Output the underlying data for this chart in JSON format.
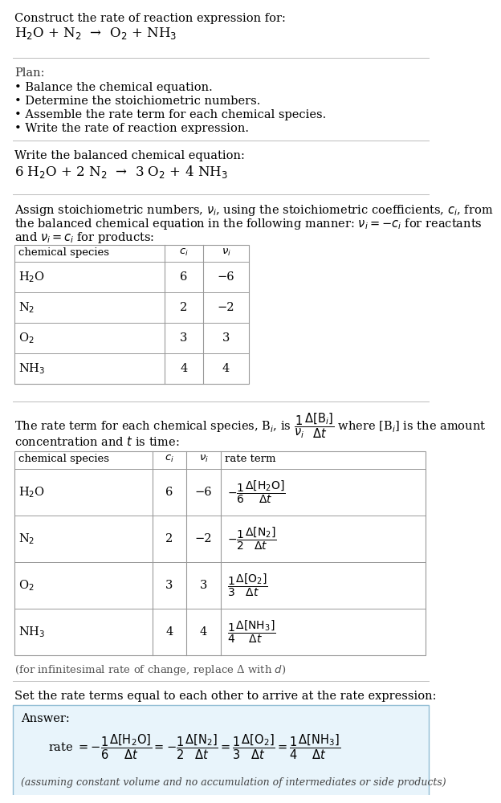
{
  "title_line1": "Construct the rate of reaction expression for:",
  "title_line2": "H$_2$O + N$_2$  →  O$_2$ + NH$_3$",
  "separator_color": "#bbbbbb",
  "bg_color": "#ffffff",
  "plan_header": "Plan:",
  "plan_items": [
    "• Balance the chemical equation.",
    "• Determine the stoichiometric numbers.",
    "• Assemble the rate term for each chemical species.",
    "• Write the rate of reaction expression."
  ],
  "balanced_header": "Write the balanced chemical equation:",
  "balanced_eq": "6 H$_2$O + 2 N$_2$  →  3 O$_2$ + 4 NH$_3$",
  "stoich_intro1": "Assign stoichiometric numbers, $\\nu_i$, using the stoichiometric coefficients, $c_i$, from",
  "stoich_intro2": "the balanced chemical equation in the following manner: $\\nu_i = -c_i$ for reactants",
  "stoich_intro3": "and $\\nu_i = c_i$ for products:",
  "table1_headers": [
    "chemical species",
    "$c_i$",
    "$\\nu_i$"
  ],
  "table1_data": [
    [
      "H$_2$O",
      "6",
      "−6"
    ],
    [
      "N$_2$",
      "2",
      "−2"
    ],
    [
      "O$_2$",
      "3",
      "3"
    ],
    [
      "NH$_3$",
      "4",
      "4"
    ]
  ],
  "rate_intro1": "The rate term for each chemical species, B$_i$, is $\\dfrac{1}{\\nu_i}\\dfrac{\\Delta[\\mathrm{B}_i]}{\\Delta t}$ where [B$_i$] is the amount",
  "rate_intro2": "concentration and $t$ is time:",
  "table2_headers": [
    "chemical species",
    "$c_i$",
    "$\\nu_i$",
    "rate term"
  ],
  "table2_data": [
    [
      "H$_2$O",
      "6",
      "−6",
      "$-\\dfrac{1}{6}\\dfrac{\\Delta[\\mathrm{H_2O}]}{\\Delta t}$"
    ],
    [
      "N$_2$",
      "2",
      "−2",
      "$-\\dfrac{1}{2}\\dfrac{\\Delta[\\mathrm{N_2}]}{\\Delta t}$"
    ],
    [
      "O$_2$",
      "3",
      "3",
      "$\\dfrac{1}{3}\\dfrac{\\Delta[\\mathrm{O_2}]}{\\Delta t}$"
    ],
    [
      "NH$_3$",
      "4",
      "4",
      "$\\dfrac{1}{4}\\dfrac{\\Delta[\\mathrm{NH_3}]}{\\Delta t}$"
    ]
  ],
  "infinitesimal_note": "(for infinitesimal rate of change, replace Δ with $d$)",
  "set_equal_text": "Set the rate terms equal to each other to arrive at the rate expression:",
  "answer_header": "Answer:",
  "answer_box_facecolor": "#e8f4fb",
  "answer_box_edgecolor": "#90bcd4",
  "answer_eq": "rate $= -\\dfrac{1}{6}\\dfrac{\\Delta[\\mathrm{H_2O}]}{\\Delta t} = -\\dfrac{1}{2}\\dfrac{\\Delta[\\mathrm{N_2}]}{\\Delta t} = \\dfrac{1}{3}\\dfrac{\\Delta[\\mathrm{O_2}]}{\\Delta t} = \\dfrac{1}{4}\\dfrac{\\Delta[\\mathrm{NH_3}]}{\\Delta t}$",
  "answer_note": "(assuming constant volume and no accumulation of intermediates or side products)",
  "fs_body": 10.5,
  "fs_small": 9.5,
  "fs_eq": 12,
  "fs_table_hdr": 9.5,
  "fs_table_data": 10.5,
  "fs_rate": 10.0,
  "table_line_color": "#999999"
}
